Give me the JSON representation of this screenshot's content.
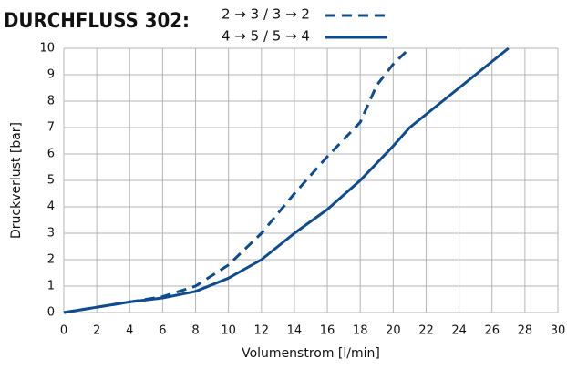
{
  "chart_data": {
    "type": "line",
    "title": "DURCHFLUSS 302:",
    "x_label": "Volumenstrom [l/min]",
    "y_label": "Druckverlust [bar]",
    "xlim": [
      0,
      30
    ],
    "xticks": [
      0,
      2,
      4,
      6,
      8,
      10,
      12,
      14,
      16,
      18,
      20,
      22,
      24,
      26,
      28,
      30
    ],
    "ylim": [
      0,
      10
    ],
    "yticks": [
      0,
      1,
      2,
      3,
      4,
      5,
      6,
      7,
      8,
      9,
      10
    ],
    "grid": true,
    "series": [
      {
        "name": "2 → 3 / 3 → 2",
        "color": "#0f4c8f",
        "line_style": "dashed",
        "x": [
          0,
          2,
          4,
          6,
          8,
          10,
          12,
          14,
          16,
          18,
          19,
          20,
          21
        ],
        "values": [
          0,
          0.2,
          0.4,
          0.6,
          1.0,
          1.8,
          3.0,
          4.5,
          5.9,
          7.2,
          8.6,
          9.4,
          10
        ]
      },
      {
        "name": "4 → 5 / 5 → 4",
        "color": "#0f4c8f",
        "line_style": "solid",
        "x": [
          0,
          2,
          4,
          6,
          8,
          10,
          12,
          14,
          16,
          18,
          20,
          21,
          22,
          24,
          26,
          27
        ],
        "values": [
          0,
          0.2,
          0.4,
          0.55,
          0.8,
          1.3,
          2.0,
          3.0,
          3.9,
          5.0,
          6.3,
          7.0,
          7.5,
          8.5,
          9.5,
          10
        ]
      }
    ]
  }
}
